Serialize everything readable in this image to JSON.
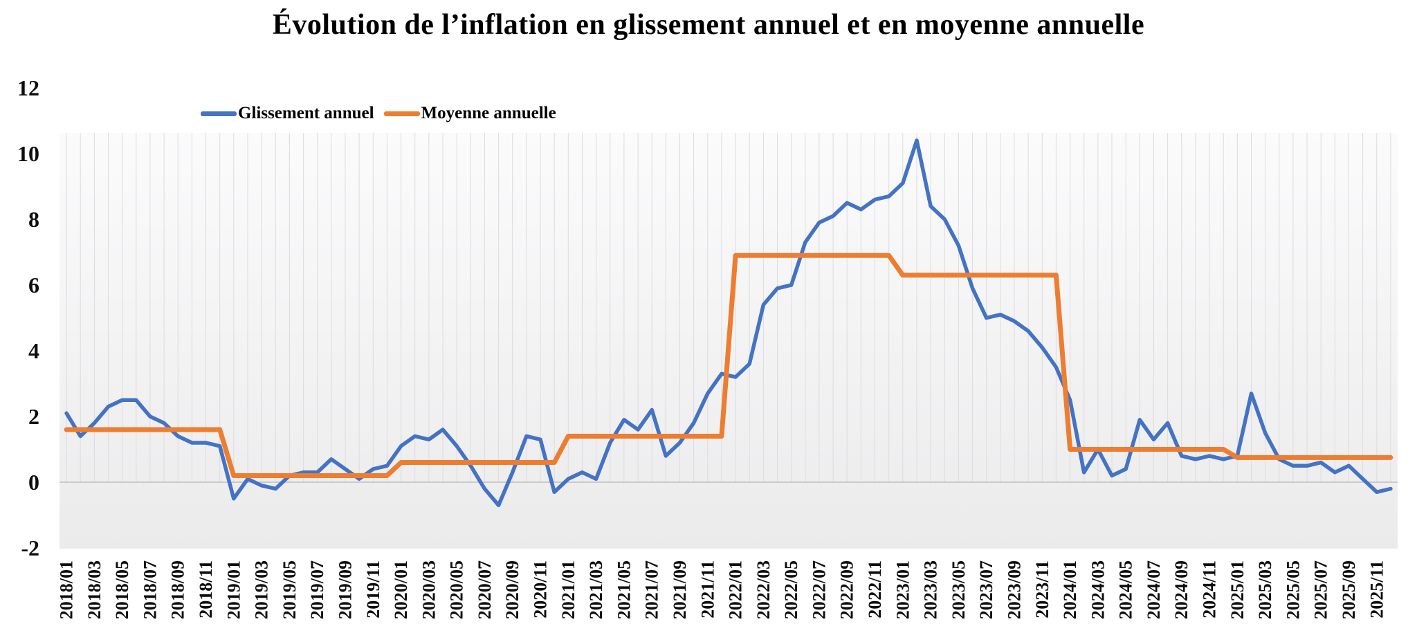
{
  "title": "Évolution de l’inflation en glissement annuel et en moyenne annuelle",
  "legend": [
    {
      "label": "Glissement annuel",
      "color": "#4472C4"
    },
    {
      "label": "Moyenne annuelle",
      "color": "#ED7D31"
    }
  ],
  "colors": {
    "blue_series": "#4472C4",
    "orange_series": "#ED7D31",
    "gridline": "#dcdcdf",
    "zero_axis": "#bdbdc1",
    "plot_bg_top": "#fbfbfc",
    "plot_bg_bottom": "#ebebec",
    "text": "#0d0d0d"
  },
  "chart_data": {
    "type": "line",
    "title": "Évolution de l’inflation en glissement annuel et en moyenne annuelle",
    "xlabel": "",
    "ylabel": "",
    "ylim": [
      -2,
      12
    ],
    "y_ticks": [
      -2,
      0,
      2,
      4,
      6,
      8,
      10,
      12
    ],
    "grid": "vertical-monthly",
    "legend_position": "top-left",
    "x_tick_every": 2,
    "x": [
      "2018/01",
      "2018/02",
      "2018/03",
      "2018/04",
      "2018/05",
      "2018/06",
      "2018/07",
      "2018/08",
      "2018/09",
      "2018/10",
      "2018/11",
      "2018/12",
      "2019/01",
      "2019/02",
      "2019/03",
      "2019/04",
      "2019/05",
      "2019/06",
      "2019/07",
      "2019/08",
      "2019/09",
      "2019/10",
      "2019/11",
      "2019/12",
      "2020/01",
      "2020/02",
      "2020/03",
      "2020/04",
      "2020/05",
      "2020/06",
      "2020/07",
      "2020/08",
      "2020/09",
      "2020/10",
      "2020/11",
      "2020/12",
      "2021/01",
      "2021/02",
      "2021/03",
      "2021/04",
      "2021/05",
      "2021/06",
      "2021/07",
      "2021/08",
      "2021/09",
      "2021/10",
      "2021/11",
      "2021/12",
      "2022/01",
      "2022/02",
      "2022/03",
      "2022/04",
      "2022/05",
      "2022/06",
      "2022/07",
      "2022/08",
      "2022/09",
      "2022/10",
      "2022/11",
      "2022/12",
      "2023/01",
      "2023/02",
      "2023/03",
      "2023/04",
      "2023/05",
      "2023/06",
      "2023/07",
      "2023/08",
      "2023/09",
      "2023/10",
      "2023/11",
      "2023/12",
      "2024/01",
      "2024/02",
      "2024/03",
      "2024/04",
      "2024/05",
      "2024/06",
      "2024/07",
      "2024/08",
      "2024/09",
      "2024/10",
      "2024/11",
      "2024/12",
      "2025/01",
      "2025/02",
      "2025/03",
      "2025/04",
      "2025/05",
      "2025/06",
      "2025/07",
      "2025/08",
      "2025/09",
      "2025/10",
      "2025/11",
      "2025/12"
    ],
    "series": [
      {
        "name": "Glissement annuel",
        "color": "#4472C4",
        "values": [
          2.1,
          1.4,
          1.8,
          2.3,
          2.5,
          2.5,
          2.0,
          1.8,
          1.4,
          1.2,
          1.2,
          1.1,
          -0.5,
          0.1,
          -0.1,
          -0.2,
          0.2,
          0.3,
          0.3,
          0.7,
          0.4,
          0.1,
          0.4,
          0.5,
          1.1,
          1.4,
          1.3,
          1.6,
          1.1,
          0.5,
          -0.2,
          -0.7,
          0.3,
          1.4,
          1.3,
          -0.3,
          0.1,
          0.3,
          0.1,
          1.2,
          1.9,
          1.6,
          2.2,
          0.8,
          1.2,
          1.8,
          2.7,
          3.3,
          3.2,
          3.6,
          5.4,
          5.9,
          6.0,
          7.3,
          7.9,
          8.1,
          8.5,
          8.3,
          8.6,
          8.7,
          9.1,
          10.4,
          8.4,
          8.0,
          7.2,
          5.9,
          5.0,
          5.1,
          4.9,
          4.6,
          4.1,
          3.5,
          2.5,
          0.3,
          1.0,
          0.2,
          0.4,
          1.9,
          1.3,
          1.8,
          0.8,
          0.7,
          0.8,
          0.7,
          0.8,
          2.7,
          1.5,
          0.7,
          0.5,
          0.5,
          0.6,
          0.3,
          0.5,
          0.1,
          -0.3,
          -0.2
        ]
      },
      {
        "name": "Moyenne annuelle",
        "color": "#ED7D31",
        "annual_averages": {
          "2018": 1.6,
          "2019": 0.2,
          "2020": 0.6,
          "2021": 1.4,
          "2022": 6.9,
          "2023": 6.3,
          "2024": 1.0,
          "2025": 0.75
        },
        "values": [
          1.6,
          1.6,
          1.6,
          1.6,
          1.6,
          1.6,
          1.6,
          1.6,
          1.6,
          1.6,
          1.6,
          1.6,
          0.2,
          0.2,
          0.2,
          0.2,
          0.2,
          0.2,
          0.2,
          0.2,
          0.2,
          0.2,
          0.2,
          0.2,
          0.6,
          0.6,
          0.6,
          0.6,
          0.6,
          0.6,
          0.6,
          0.6,
          0.6,
          0.6,
          0.6,
          0.6,
          1.4,
          1.4,
          1.4,
          1.4,
          1.4,
          1.4,
          1.4,
          1.4,
          1.4,
          1.4,
          1.4,
          1.4,
          6.9,
          6.9,
          6.9,
          6.9,
          6.9,
          6.9,
          6.9,
          6.9,
          6.9,
          6.9,
          6.9,
          6.9,
          6.3,
          6.3,
          6.3,
          6.3,
          6.3,
          6.3,
          6.3,
          6.3,
          6.3,
          6.3,
          6.3,
          6.3,
          1.0,
          1.0,
          1.0,
          1.0,
          1.0,
          1.0,
          1.0,
          1.0,
          1.0,
          1.0,
          1.0,
          1.0,
          0.75,
          0.75,
          0.75,
          0.75,
          0.75,
          0.75,
          0.75,
          0.75,
          0.75,
          0.75,
          0.75,
          0.75
        ]
      }
    ]
  }
}
